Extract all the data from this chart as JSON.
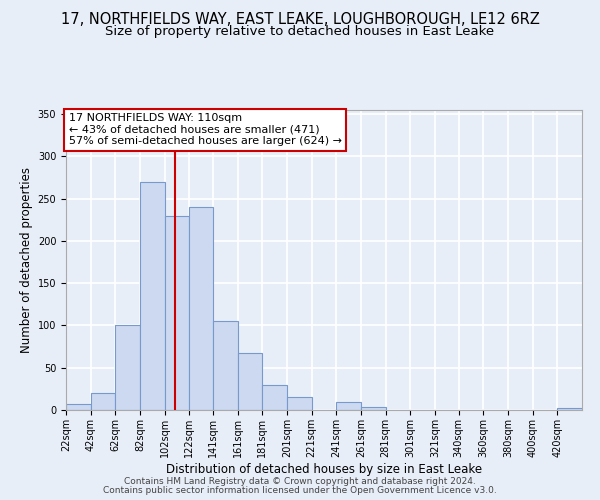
{
  "title": "17, NORTHFIELDS WAY, EAST LEAKE, LOUGHBOROUGH, LE12 6RZ",
  "subtitle": "Size of property relative to detached houses in East Leake",
  "xlabel": "Distribution of detached houses by size in East Leake",
  "ylabel": "Number of detached properties",
  "footer_lines": [
    "Contains HM Land Registry data © Crown copyright and database right 2024.",
    "Contains public sector information licensed under the Open Government Licence v3.0."
  ],
  "tick_labels": [
    "22sqm",
    "42sqm",
    "62sqm",
    "82sqm",
    "102sqm",
    "122sqm",
    "141sqm",
    "161sqm",
    "181sqm",
    "201sqm",
    "221sqm",
    "241sqm",
    "261sqm",
    "281sqm",
    "301sqm",
    "321sqm",
    "340sqm",
    "360sqm",
    "380sqm",
    "400sqm",
    "420sqm"
  ],
  "bar_values": [
    7,
    20,
    100,
    270,
    230,
    240,
    105,
    68,
    30,
    15,
    0,
    10,
    3,
    0,
    0,
    0,
    0,
    0,
    0,
    0,
    2
  ],
  "bar_color": "#ccd9f0",
  "bar_edge_color": "#7799cc",
  "vline_x": 110,
  "vline_color": "#cc0000",
  "annotation_title": "17 NORTHFIELDS WAY: 110sqm",
  "annotation_line1": "← 43% of detached houses are smaller (471)",
  "annotation_line2": "57% of semi-detached houses are larger (624) →",
  "annotation_box_color": "#ffffff",
  "annotation_box_edge": "#cc0000",
  "ylim": [
    0,
    355
  ],
  "yticks": [
    0,
    50,
    100,
    150,
    200,
    250,
    300,
    350
  ],
  "bg_color": "#e8eef8",
  "grid_color": "#ffffff",
  "title_fontsize": 10.5,
  "subtitle_fontsize": 9.5,
  "axis_label_fontsize": 8.5,
  "tick_fontsize": 7,
  "footer_fontsize": 6.5,
  "annotation_fontsize": 8
}
